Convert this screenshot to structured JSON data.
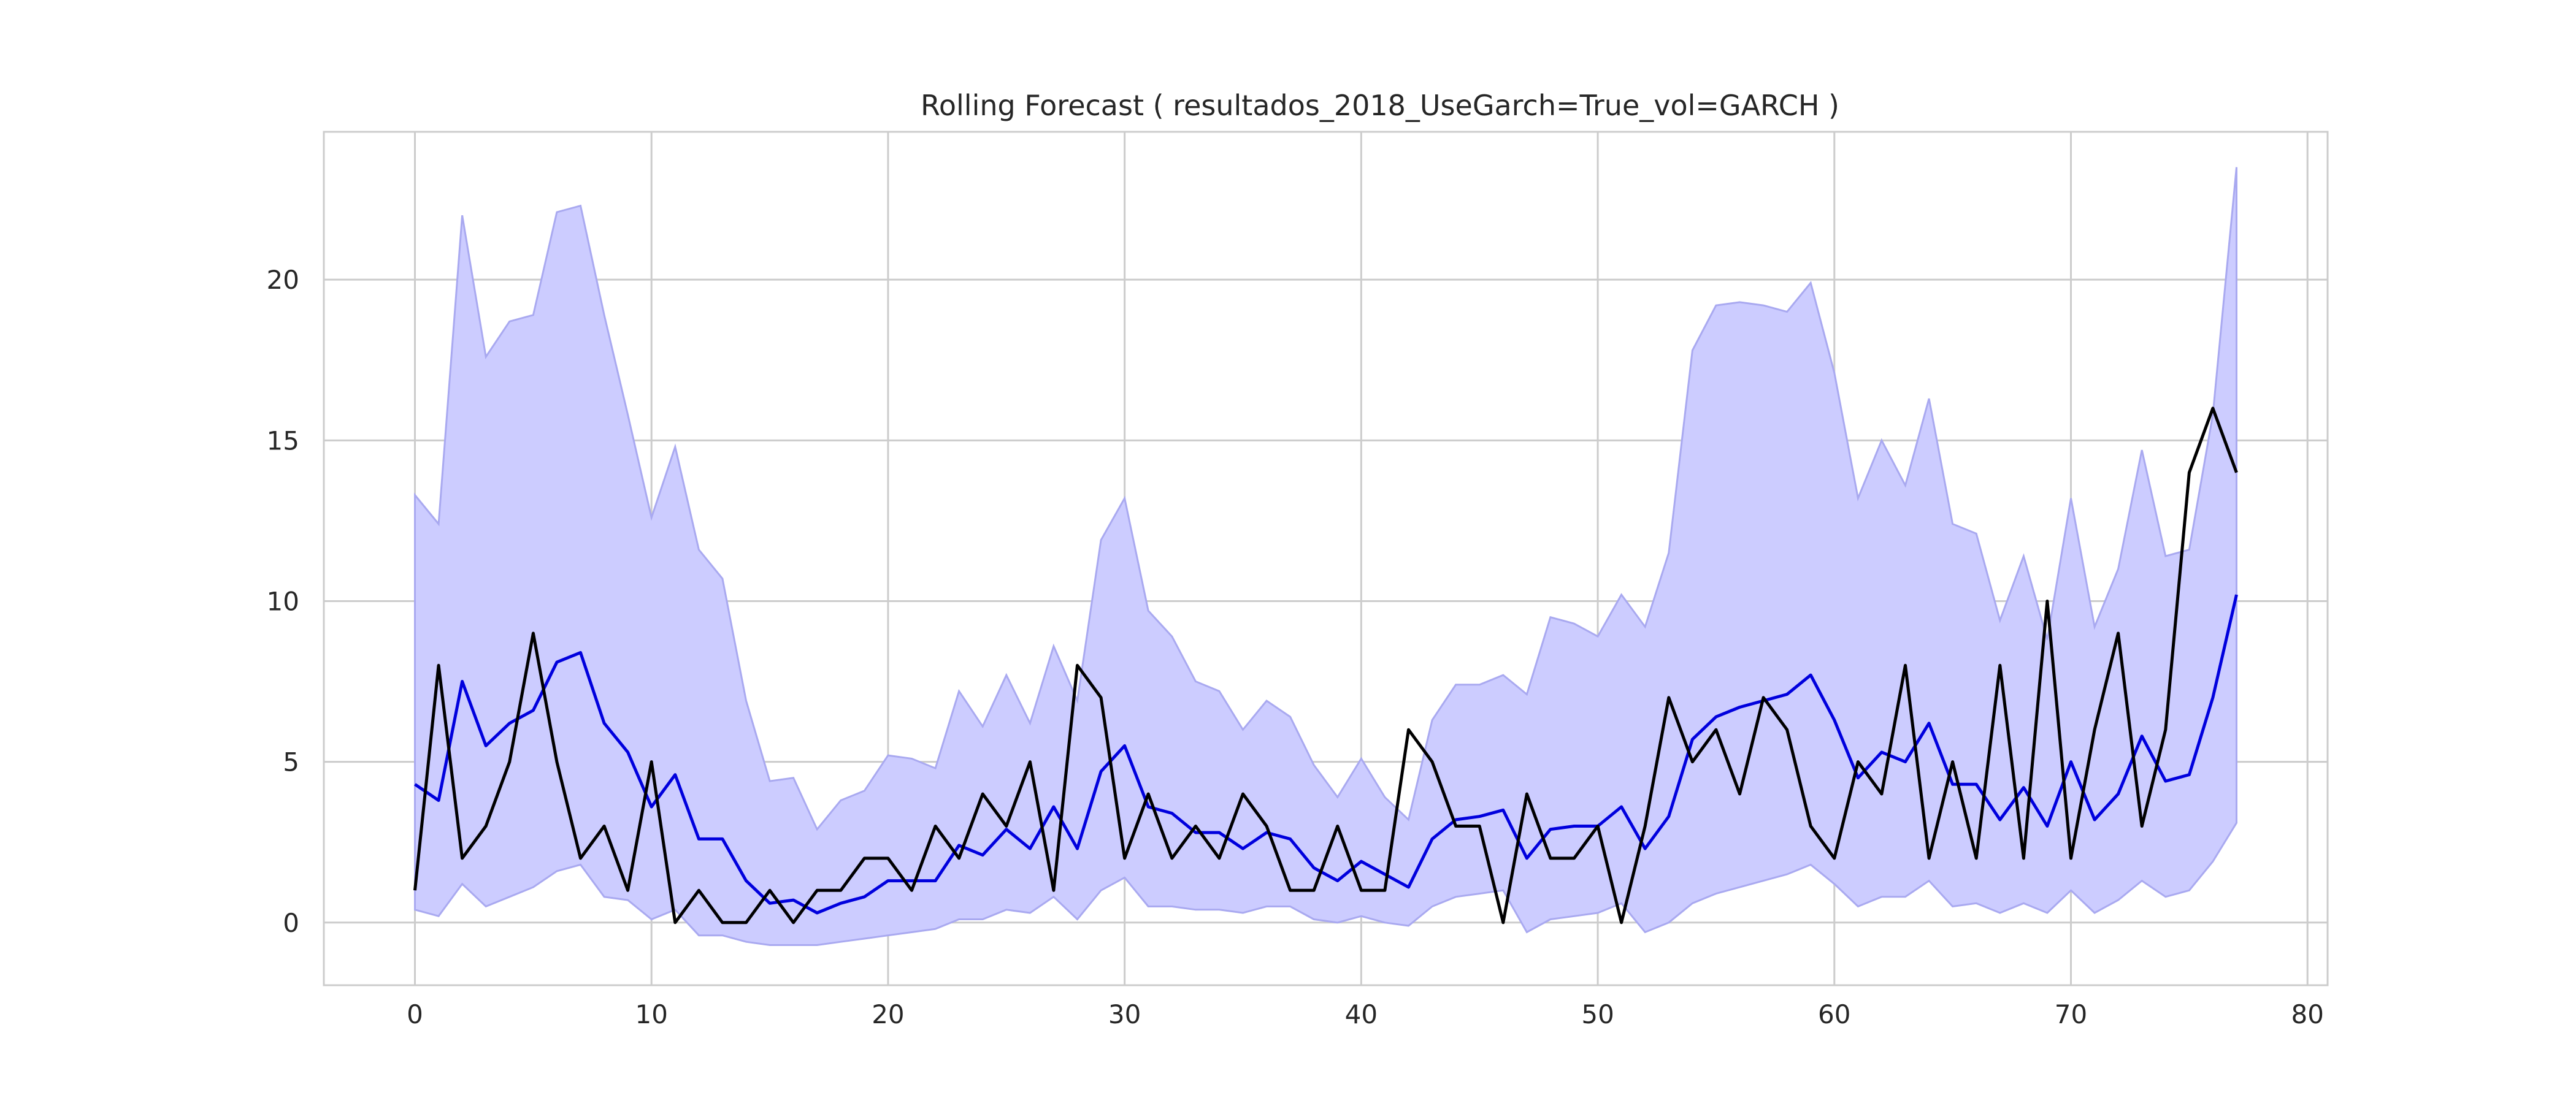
{
  "chart_data": {
    "type": "line",
    "title": "Rolling Forecast ( resultados_2018_UseGarch=True_vol=GARCH )",
    "xlabel": "",
    "ylabel": "",
    "xlim": [
      -3.85,
      80.85
    ],
    "ylim": [
      -1.95,
      24.6
    ],
    "xticks": [
      0,
      10,
      20,
      30,
      40,
      50,
      60,
      70,
      80
    ],
    "yticks": [
      0,
      5,
      10,
      15,
      20
    ],
    "grid": true,
    "legend": "none",
    "x": [
      0,
      1,
      2,
      3,
      4,
      5,
      6,
      7,
      8,
      9,
      10,
      11,
      12,
      13,
      14,
      15,
      16,
      17,
      18,
      19,
      20,
      21,
      22,
      23,
      24,
      25,
      26,
      27,
      28,
      29,
      30,
      31,
      32,
      33,
      34,
      35,
      36,
      37,
      38,
      39,
      40,
      41,
      42,
      43,
      44,
      45,
      46,
      47,
      48,
      49,
      50,
      51,
      52,
      53,
      54,
      55,
      56,
      57,
      58,
      59,
      60,
      61,
      62,
      63,
      64,
      65,
      66,
      67,
      68,
      69,
      70,
      71,
      72,
      73,
      74,
      75,
      76,
      77
    ],
    "band": {
      "color": "#ccccff",
      "edge_color": "#a9a9f0",
      "upper": [
        13.3,
        12.4,
        22.0,
        17.6,
        18.7,
        18.9,
        22.1,
        22.3,
        18.9,
        15.8,
        12.6,
        14.8,
        11.6,
        10.7,
        6.9,
        4.4,
        4.5,
        2.9,
        3.8,
        4.1,
        5.2,
        5.1,
        4.8,
        7.2,
        6.1,
        7.7,
        6.2,
        8.6,
        6.9,
        11.9,
        13.2,
        9.7,
        8.9,
        7.5,
        7.2,
        6.0,
        6.9,
        6.4,
        4.9,
        3.9,
        5.1,
        3.9,
        3.2,
        6.3,
        7.4,
        7.4,
        7.7,
        7.1,
        9.5,
        9.3,
        8.9,
        10.2,
        9.2,
        11.5,
        17.8,
        19.2,
        19.3,
        19.2,
        19.0,
        19.9,
        17.1,
        13.2,
        15.0,
        13.6,
        16.3,
        12.4,
        12.1,
        9.4,
        11.4,
        8.8,
        13.2,
        9.2,
        11.0,
        14.7,
        11.4,
        11.6,
        15.8,
        23.5
      ],
      "lower": [
        0.4,
        0.2,
        1.2,
        0.5,
        0.8,
        1.1,
        1.6,
        1.8,
        0.8,
        0.7,
        0.1,
        0.4,
        -0.4,
        -0.4,
        -0.6,
        -0.7,
        -0.7,
        -0.7,
        -0.6,
        -0.5,
        -0.4,
        -0.3,
        -0.2,
        0.1,
        0.1,
        0.4,
        0.3,
        0.8,
        0.1,
        1.0,
        1.4,
        0.5,
        0.5,
        0.4,
        0.4,
        0.3,
        0.5,
        0.5,
        0.1,
        0.0,
        0.2,
        0.0,
        -0.1,
        0.5,
        0.8,
        0.9,
        1.0,
        -0.3,
        0.1,
        0.2,
        0.3,
        0.6,
        -0.3,
        0.0,
        0.6,
        0.9,
        1.1,
        1.3,
        1.5,
        1.8,
        1.2,
        0.5,
        0.8,
        0.8,
        1.3,
        0.5,
        0.6,
        0.3,
        0.6,
        0.3,
        1.0,
        0.3,
        0.7,
        1.3,
        0.8,
        1.0,
        1.9,
        3.1
      ]
    },
    "series": [
      {
        "color": "#0000dd",
        "values": [
          4.3,
          3.8,
          7.5,
          5.5,
          6.2,
          6.6,
          8.1,
          8.4,
          6.2,
          5.3,
          3.6,
          4.6,
          2.6,
          2.6,
          1.3,
          0.6,
          0.7,
          0.3,
          0.6,
          0.8,
          1.3,
          1.3,
          1.3,
          2.4,
          2.1,
          2.9,
          2.3,
          3.6,
          2.3,
          4.7,
          5.5,
          3.6,
          3.4,
          2.8,
          2.8,
          2.3,
          2.8,
          2.6,
          1.7,
          1.3,
          1.9,
          1.5,
          1.1,
          2.6,
          3.2,
          3.3,
          3.5,
          2.0,
          2.9,
          3.0,
          3.0,
          3.6,
          2.3,
          3.3,
          5.7,
          6.4,
          6.7,
          6.9,
          7.1,
          7.7,
          6.3,
          4.5,
          5.3,
          5.0,
          6.2,
          4.3,
          4.3,
          3.2,
          4.2,
          3.0,
          5.0,
          3.2,
          4.0,
          5.8,
          4.4,
          4.6,
          7.0,
          10.2
        ]
      },
      {
        "color": "#000000",
        "values": [
          1,
          8,
          2,
          3,
          5,
          9,
          5,
          2,
          3,
          1,
          5,
          0,
          1,
          0,
          0,
          1,
          0,
          1,
          1,
          2,
          2,
          1,
          3,
          2,
          4,
          3,
          5,
          1,
          8,
          7,
          2,
          4,
          2,
          3,
          2,
          4,
          3,
          1,
          1,
          3,
          1,
          1,
          6,
          5,
          3,
          3,
          0,
          4,
          2,
          2,
          3,
          0,
          3,
          7,
          5,
          6,
          4,
          7,
          6,
          3,
          2,
          5,
          4,
          8,
          2,
          5,
          2,
          8,
          2,
          10,
          2,
          6,
          9,
          3,
          6,
          14,
          16,
          14
        ]
      }
    ]
  }
}
